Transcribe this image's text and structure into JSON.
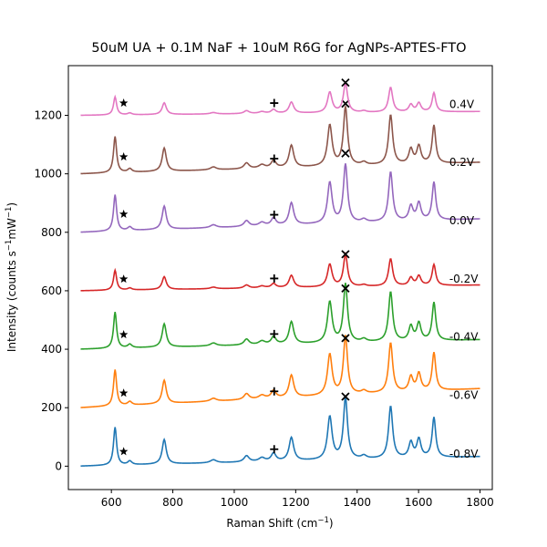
{
  "chart_data": {
    "type": "line",
    "title": "50uM UA + 0.1M NaF + 10uM R6G for AgNPs-APTES-FTO",
    "xlabel": "Raman Shift (cm",
    "xlabel_sup": "−1",
    "xlabel_end": ")",
    "ylabel": "Intensity (counts s",
    "ylabel_sup1": "−1",
    "ylabel_mid": "mW",
    "ylabel_sup2": "−1",
    "ylabel_end": ")",
    "xlim": [
      460,
      1840
    ],
    "ylim": [
      -80,
      1370
    ],
    "xticks": [
      600,
      800,
      1000,
      1200,
      1400,
      1600,
      1800
    ],
    "yticks": [
      0,
      200,
      400,
      600,
      800,
      1000,
      1200
    ],
    "grid": false,
    "peaks": [
      {
        "center": 612,
        "width": 6,
        "rel": 0.62
      },
      {
        "center": 660,
        "width": 8,
        "rel": 0.06
      },
      {
        "center": 772,
        "width": 8,
        "rel": 0.4
      },
      {
        "center": 932,
        "width": 12,
        "rel": 0.05
      },
      {
        "center": 1040,
        "width": 10,
        "rel": 0.1
      },
      {
        "center": 1090,
        "width": 12,
        "rel": 0.06
      },
      {
        "center": 1128,
        "width": 9,
        "rel": 0.13
      },
      {
        "center": 1186,
        "width": 9,
        "rel": 0.38
      },
      {
        "center": 1311,
        "width": 9,
        "rel": 0.7
      },
      {
        "center": 1362,
        "width": 8,
        "rel": 1.0
      },
      {
        "center": 1422,
        "width": 10,
        "rel": 0.05
      },
      {
        "center": 1509,
        "width": 8,
        "rel": 0.85
      },
      {
        "center": 1575,
        "width": 8,
        "rel": 0.25
      },
      {
        "center": 1601,
        "width": 8,
        "rel": 0.3
      },
      {
        "center": 1650,
        "width": 7,
        "rel": 0.65
      }
    ],
    "series": [
      {
        "label": "-0.8V",
        "color": "#1f77b4",
        "offset": 0,
        "scale": 210,
        "slope": 0.025,
        "label_y": 42,
        "markers": [
          {
            "symbol": "star",
            "x": 640,
            "y": 50
          },
          {
            "symbol": "plus",
            "x": 1130,
            "y": 58
          },
          {
            "symbol": "cross",
            "x": 1362,
            "y": 238
          }
        ]
      },
      {
        "label": "-0.6V",
        "color": "#ff7f0e",
        "offset": 200,
        "scale": 200,
        "slope": 0.05,
        "label_y": 242,
        "markers": [
          {
            "symbol": "star",
            "x": 640,
            "y": 250
          },
          {
            "symbol": "plus",
            "x": 1130,
            "y": 256
          },
          {
            "symbol": "cross",
            "x": 1362,
            "y": 438
          }
        ]
      },
      {
        "label": "-0.4V",
        "color": "#2ca02c",
        "offset": 400,
        "scale": 200,
        "slope": 0.025,
        "label_y": 442,
        "markers": [
          {
            "symbol": "star",
            "x": 640,
            "y": 450
          },
          {
            "symbol": "plus",
            "x": 1130,
            "y": 452
          },
          {
            "symbol": "cross",
            "x": 1362,
            "y": 608
          }
        ]
      },
      {
        "label": "-0.2V",
        "color": "#d62728",
        "offset": 600,
        "scale": 110,
        "slope": 0.015,
        "label_y": 640,
        "markers": [
          {
            "symbol": "star",
            "x": 640,
            "y": 640
          },
          {
            "symbol": "plus",
            "x": 1130,
            "y": 642
          },
          {
            "symbol": "cross",
            "x": 1362,
            "y": 725
          }
        ]
      },
      {
        "label": "0.0V",
        "color": "#9467bd",
        "offset": 800,
        "scale": 200,
        "slope": 0.035,
        "label_y": 840,
        "markers": [
          {
            "symbol": "star",
            "x": 640,
            "y": 862
          },
          {
            "symbol": "plus",
            "x": 1130,
            "y": 860
          },
          {
            "symbol": "cross",
            "x": 1362,
            "y": 1070
          }
        ]
      },
      {
        "label": "0.2V",
        "color": "#8c564b",
        "offset": 1000,
        "scale": 200,
        "slope": 0.03,
        "label_y": 1040,
        "markers": [
          {
            "symbol": "star",
            "x": 640,
            "y": 1058
          },
          {
            "symbol": "plus",
            "x": 1130,
            "y": 1052
          },
          {
            "symbol": "cross",
            "x": 1362,
            "y": 1240
          }
        ]
      },
      {
        "label": "0.4V",
        "color": "#e377c2",
        "offset": 1200,
        "scale": 100,
        "slope": 0.01,
        "label_y": 1238,
        "markers": [
          {
            "symbol": "star",
            "x": 640,
            "y": 1242
          },
          {
            "symbol": "plus",
            "x": 1130,
            "y": 1242
          },
          {
            "symbol": "cross",
            "x": 1362,
            "y": 1312
          }
        ]
      }
    ]
  }
}
